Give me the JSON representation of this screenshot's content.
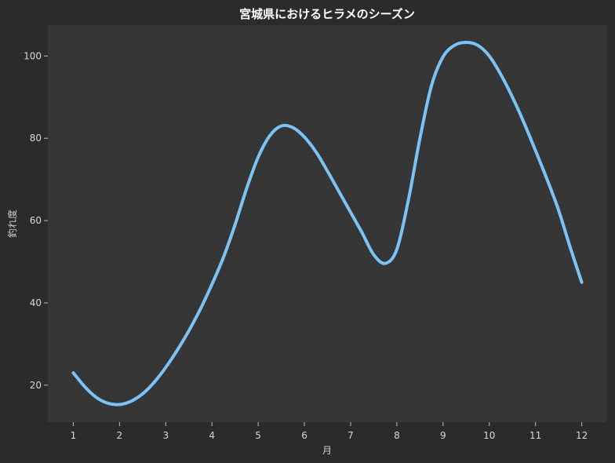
{
  "chart_data": {
    "type": "line",
    "title": "宮城県におけるヒラメのシーズン",
    "xlabel": "月",
    "ylabel": "釣れ度",
    "x": [
      1,
      2,
      3,
      4,
      5,
      6,
      7,
      8,
      9,
      10,
      11,
      12
    ],
    "xticks": [
      "1",
      "2",
      "3",
      "4",
      "5",
      "6",
      "7",
      "8",
      "9",
      "10",
      "11",
      "12"
    ],
    "xlim": [
      0.45,
      12.55
    ],
    "ylim": [
      11,
      107.5
    ],
    "yticks": [
      20,
      40,
      60,
      80,
      100
    ],
    "grid": false,
    "series": [
      {
        "smooth_curve": [
          [
            1,
            23
          ],
          [
            1.25,
            19.6
          ],
          [
            1.5,
            17
          ],
          [
            1.75,
            15.6
          ],
          [
            2,
            15.3
          ],
          [
            2.25,
            16.1
          ],
          [
            2.5,
            17.9
          ],
          [
            2.75,
            20.7
          ],
          [
            3,
            24.3
          ],
          [
            3.25,
            28.5
          ],
          [
            3.5,
            33.2
          ],
          [
            3.75,
            38.5
          ],
          [
            4,
            44.5
          ],
          [
            4.25,
            51.1
          ],
          [
            4.5,
            59
          ],
          [
            4.75,
            67.8
          ],
          [
            5,
            75.4
          ],
          [
            5.25,
            80.6
          ],
          [
            5.5,
            83
          ],
          [
            5.75,
            82.6
          ],
          [
            6,
            80.3
          ],
          [
            6.25,
            76.7
          ],
          [
            6.5,
            72
          ],
          [
            6.75,
            67
          ],
          [
            7,
            62
          ],
          [
            7.25,
            57
          ],
          [
            7.5,
            51.7
          ],
          [
            7.75,
            49.6
          ],
          [
            8,
            53
          ],
          [
            8.25,
            65
          ],
          [
            8.5,
            80
          ],
          [
            8.75,
            92.8
          ],
          [
            9,
            99.8
          ],
          [
            9.25,
            102.6
          ],
          [
            9.5,
            103.3
          ],
          [
            9.75,
            102.6
          ],
          [
            10,
            100
          ],
          [
            10.25,
            95.5
          ],
          [
            10.5,
            90
          ],
          [
            10.75,
            83.8
          ],
          [
            11,
            77
          ],
          [
            11.25,
            70
          ],
          [
            11.5,
            62.5
          ],
          [
            11.75,
            53.5
          ],
          [
            12,
            45
          ]
        ],
        "color": "#7cc3f5"
      }
    ]
  }
}
